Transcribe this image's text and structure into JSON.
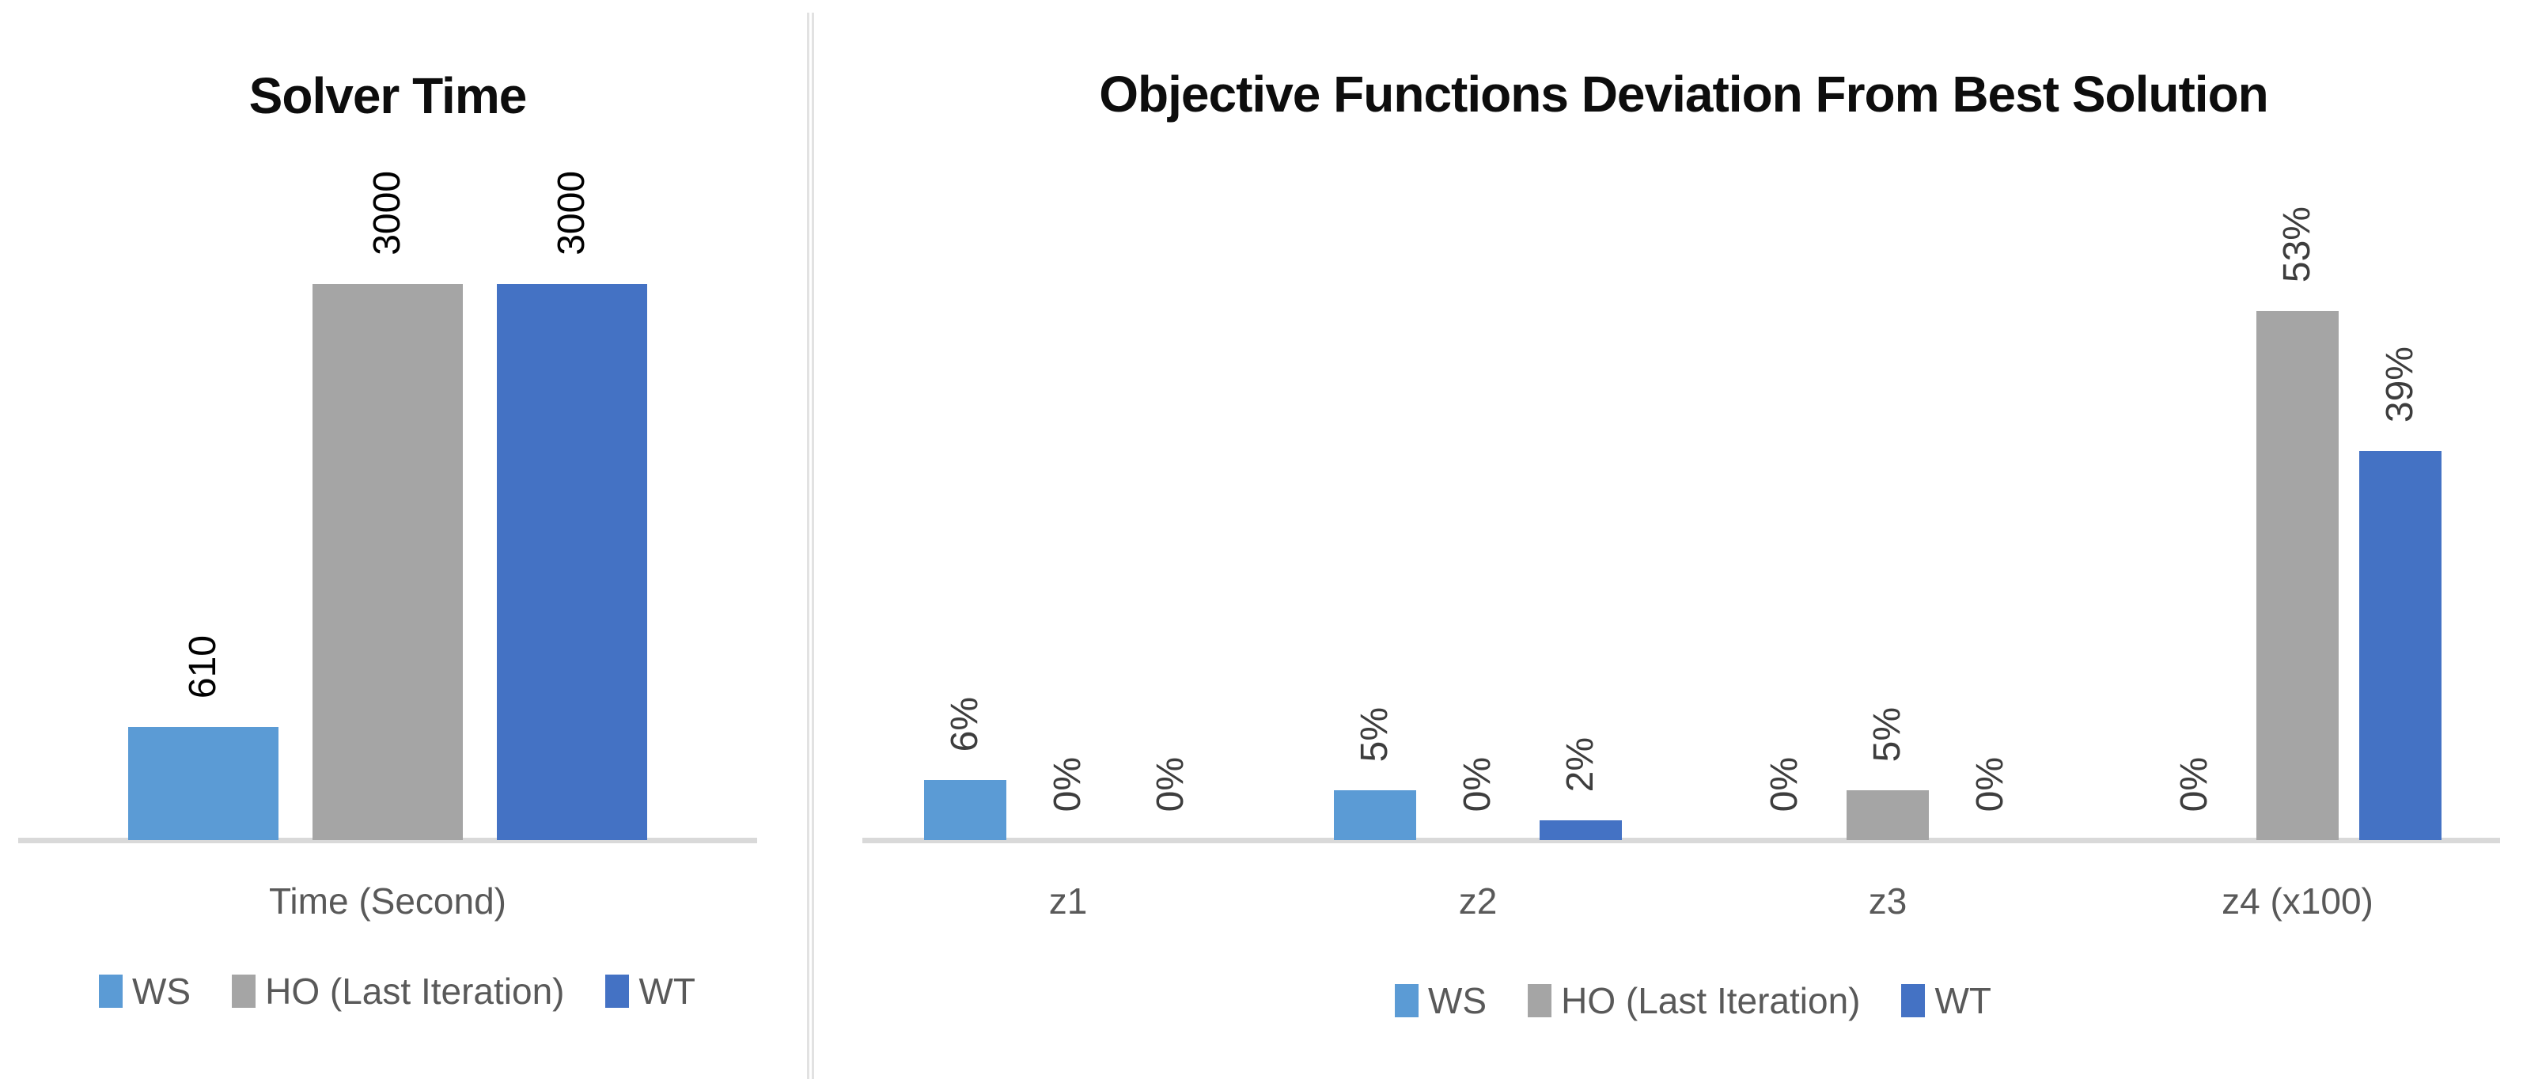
{
  "page": {
    "background": "#ffffff"
  },
  "colors": {
    "ws": "#5B9BD5",
    "ho": "#A5A5A5",
    "wt": "#4472C4",
    "axis_line": "#D9D9D9",
    "category_text": "#595959",
    "legend_text": "#595959",
    "title_text": "#0d0d0d",
    "divider": "#E2E2E2"
  },
  "chart_data": [
    {
      "type": "bar",
      "title": "Solver Time",
      "categories": [
        "Time (Second)"
      ],
      "series": [
        {
          "name": "WS",
          "color": "#5B9BD5",
          "values": [
            610
          ],
          "labels": [
            "610"
          ]
        },
        {
          "name": "HO (Last Iteration)",
          "color": "#A5A5A5",
          "values": [
            3000
          ],
          "labels": [
            "3000"
          ]
        },
        {
          "name": "WT",
          "color": "#4472C4",
          "values": [
            3000
          ],
          "labels": [
            "3000"
          ]
        }
      ],
      "xlabel": "",
      "ylabel": "",
      "ylim": [
        0,
        3000
      ],
      "value_axis_visible": false,
      "gridlines": false,
      "legend_position": "bottom",
      "data_label_rotation": "vertical",
      "data_label_color": "#000000"
    },
    {
      "type": "bar",
      "title": "Objective Functions Deviation From Best Solution",
      "categories": [
        "z1",
        "z2",
        "z3",
        "z4 (x100)"
      ],
      "series": [
        {
          "name": "WS",
          "color": "#5B9BD5",
          "values": [
            6,
            5,
            0,
            0
          ],
          "labels": [
            "6%",
            "5%",
            "0%",
            "0%"
          ]
        },
        {
          "name": "HO (Last Iteration)",
          "color": "#A5A5A5",
          "values": [
            0,
            0,
            5,
            53
          ],
          "labels": [
            "0%",
            "0%",
            "5%",
            "53%"
          ]
        },
        {
          "name": "WT",
          "color": "#4472C4",
          "values": [
            0,
            2,
            0,
            39
          ],
          "labels": [
            "0%",
            "2%",
            "0%",
            "39%"
          ]
        }
      ],
      "xlabel": "",
      "ylabel": "",
      "ylim": [
        0,
        53
      ],
      "unit": "percent",
      "value_axis_visible": false,
      "gridlines": false,
      "legend_position": "bottom",
      "data_label_rotation": "vertical",
      "data_label_color": "#3d3d3d"
    }
  ]
}
